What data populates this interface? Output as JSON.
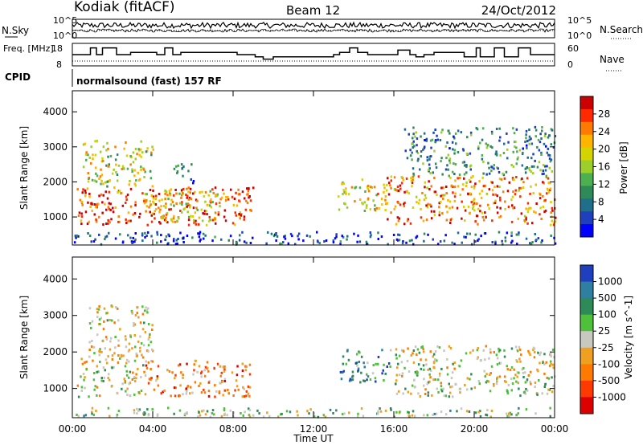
{
  "header": {
    "station": "Kodiak (fitACF)",
    "beam": "Beam 12",
    "date": "24/Oct/2012"
  },
  "colors": {
    "noise_sky": "#000000",
    "frequency_line": "#000000",
    "background": "#ffffff"
  },
  "chart_data": [
    {
      "type": "line",
      "panel": "noise",
      "left_label": "N.Sky",
      "right_label": "N.Search",
      "left_ticks": [
        "10^5",
        "10^0"
      ],
      "right_ticks": [
        "10^5",
        "10^0"
      ],
      "xlim": [
        0,
        24
      ],
      "series": []
    },
    {
      "type": "line",
      "panel": "frequency-nave",
      "left_label": "Freq. [MHz]",
      "right_label": "Nave",
      "left_ticks": [
        18,
        8
      ],
      "right_ticks": [
        60,
        0
      ],
      "xlim": [
        0,
        24
      ],
      "ylim": [
        8,
        18
      ],
      "step_x": [
        0,
        0.9,
        1.2,
        1.5,
        2.2,
        2.9,
        4.2,
        4.6,
        5.0,
        5.4,
        8.2,
        9.1,
        9.5,
        10.0,
        13.0,
        13.3,
        13.8,
        14.2,
        14.7,
        16.2,
        16.8,
        17.1,
        17.5,
        18.0,
        19.5,
        20.1,
        20.3,
        21.0,
        21.5,
        22.2,
        22.8,
        24
      ],
      "step_freq": [
        13,
        16,
        13,
        16,
        13,
        14,
        13,
        16,
        13,
        14,
        13,
        12,
        11,
        12,
        13,
        14,
        16,
        14,
        13,
        15,
        13,
        12,
        13,
        14,
        12,
        16,
        12,
        16,
        12,
        16,
        13,
        13
      ]
    },
    {
      "type": "text",
      "panel": "cpid",
      "left_label": "CPID",
      "program": "normalsound (fast) 157 RF"
    },
    {
      "type": "heatmap",
      "panel": "power",
      "ylabel": "Slant Range [km]",
      "xlabel": "",
      "yticks": [
        1000,
        2000,
        3000,
        4000
      ],
      "ylim": [
        200,
        4600
      ],
      "xlim": [
        0,
        24
      ],
      "colorbar_label": "Power [dB]",
      "colorbar_ticks": [
        28,
        24,
        20,
        16,
        12,
        8,
        4
      ],
      "colorbar_colors": [
        "#cc0000",
        "#ff2a00",
        "#ff7a00",
        "#ffb400",
        "#d4d400",
        "#9ccf2a",
        "#4caf50",
        "#2e8b57",
        "#1f6f8b",
        "#1f3fbf",
        "#0000ff"
      ],
      "regions": [
        {
          "t0": 0.2,
          "t1": 9.0,
          "r0": 800,
          "r1": 1900,
          "level": 0.85
        },
        {
          "t0": 0.5,
          "t1": 4.0,
          "r0": 1900,
          "r1": 3200,
          "level": 0.55
        },
        {
          "t0": 3.5,
          "t1": 7.5,
          "r0": 900,
          "r1": 1800,
          "level": 0.6
        },
        {
          "t0": 5.0,
          "t1": 6.0,
          "r0": 2000,
          "r1": 2600,
          "level": 0.25
        },
        {
          "t0": 13.2,
          "t1": 15.5,
          "r0": 1200,
          "r1": 2100,
          "level": 0.6
        },
        {
          "t0": 15.5,
          "t1": 24.0,
          "r0": 800,
          "r1": 2200,
          "level": 0.75
        },
        {
          "t0": 16.5,
          "t1": 24.0,
          "r0": 2200,
          "r1": 3600,
          "level": 0.3
        },
        {
          "t0": 0.0,
          "t1": 24.0,
          "r0": 250,
          "r1": 600,
          "level": 0.15
        }
      ]
    },
    {
      "type": "heatmap",
      "panel": "velocity",
      "ylabel": "Slant Range [km]",
      "xlabel": "Time UT",
      "yticks": [
        1000,
        2000,
        3000,
        4000
      ],
      "ylim": [
        200,
        4600
      ],
      "xlim": [
        0,
        24
      ],
      "xtick_labels": [
        "00:00",
        "04:00",
        "08:00",
        "12:00",
        "16:00",
        "20:00",
        "00:00"
      ],
      "xtick_values": [
        0,
        4,
        8,
        12,
        16,
        20,
        24
      ],
      "colorbar_label": "Velocity [m s^-1]",
      "colorbar_ticks": [
        1000,
        500,
        100,
        25,
        -25,
        -100,
        -500,
        -1000
      ],
      "colorbar_colors": [
        "#1f3fbf",
        "#2e7fa0",
        "#2e8b57",
        "#4fc03a",
        "#c8c8c0",
        "#f0a020",
        "#ff7a00",
        "#ff3a00",
        "#dd0000"
      ],
      "regions": [
        {
          "t0": 0.2,
          "t1": 3.6,
          "r0": 800,
          "r1": 2000,
          "level": 0.5
        },
        {
          "t0": 3.6,
          "t1": 8.8,
          "r0": 800,
          "r1": 1800,
          "level": 0.3
        },
        {
          "t0": 0.8,
          "t1": 4.0,
          "r0": 2000,
          "r1": 3300,
          "level": 0.45
        },
        {
          "t0": 13.3,
          "t1": 15.8,
          "r0": 1200,
          "r1": 2100,
          "level": 0.75
        },
        {
          "t0": 16.0,
          "t1": 24.0,
          "r0": 800,
          "r1": 2200,
          "level": 0.5
        },
        {
          "t0": 0.0,
          "t1": 24.0,
          "r0": 250,
          "r1": 500,
          "level": 0.6
        }
      ]
    }
  ]
}
